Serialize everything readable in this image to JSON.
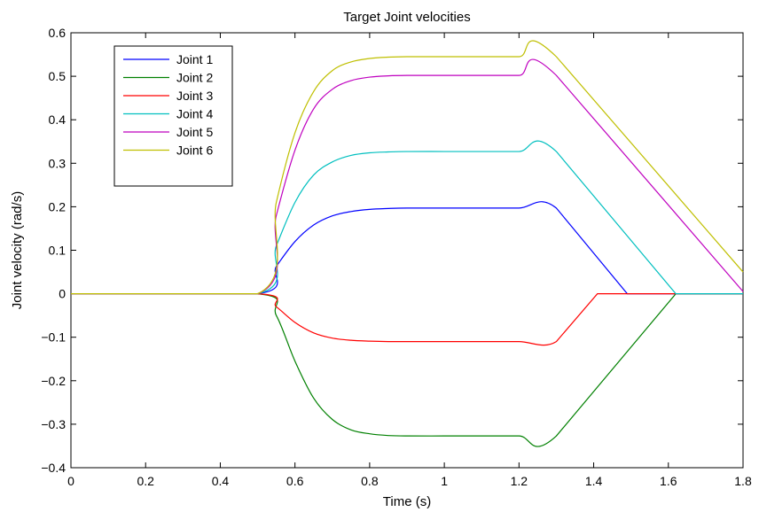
{
  "chart_data": {
    "type": "line",
    "title": "Target Joint velocities",
    "xlabel": "Time (s)",
    "ylabel": "Joint velocity (rad/s)",
    "xlim": [
      0,
      1.8
    ],
    "ylim": [
      -0.4,
      0.6
    ],
    "xticks": [
      0,
      0.2,
      0.4,
      0.6,
      0.8,
      1,
      1.2,
      1.4,
      1.6,
      1.8
    ],
    "xtick_labels": [
      "0",
      "0.2",
      "0.4",
      "0.6",
      "0.8",
      "1",
      "1.2",
      "1.4",
      "1.6",
      "1.8"
    ],
    "yticks": [
      -0.4,
      -0.3,
      -0.2,
      -0.1,
      0,
      0.1,
      0.2,
      0.3,
      0.4,
      0.5,
      0.6
    ],
    "ytick_labels": [
      "−0.4",
      "−0.3",
      "−0.2",
      "−0.1",
      "0",
      "0.1",
      "0.2",
      "0.3",
      "0.4",
      "0.5",
      "0.6"
    ],
    "grid": false,
    "legend_position": "top-left",
    "series": [
      {
        "name": "Joint 1",
        "color": "#0000ff",
        "x": [
          0,
          0.5,
          0.55,
          0.6,
          0.65,
          0.7,
          0.75,
          0.8,
          0.85,
          0.9,
          1.0,
          1.1,
          1.2,
          1.3,
          1.49,
          1.8
        ],
        "y": [
          0,
          0,
          0.063,
          0.12,
          0.158,
          0.179,
          0.189,
          0.194,
          0.196,
          0.197,
          0.197,
          0.197,
          0.197,
          0.197,
          0,
          0
        ]
      },
      {
        "name": "Joint 2",
        "color": "#008000",
        "x": [
          0,
          0.5,
          0.55,
          0.6,
          0.65,
          0.7,
          0.75,
          0.8,
          0.85,
          0.9,
          1.0,
          1.1,
          1.2,
          1.3,
          1.62,
          1.8
        ],
        "y": [
          0,
          0,
          -0.05,
          -0.155,
          -0.24,
          -0.289,
          -0.313,
          -0.322,
          -0.326,
          -0.327,
          -0.327,
          -0.327,
          -0.327,
          -0.327,
          0,
          0
        ]
      },
      {
        "name": "Joint 3",
        "color": "#ff0000",
        "x": [
          0,
          0.5,
          0.55,
          0.6,
          0.65,
          0.7,
          0.75,
          0.8,
          0.85,
          0.9,
          1.0,
          1.1,
          1.2,
          1.3,
          1.41,
          1.8
        ],
        "y": [
          0,
          0,
          -0.03,
          -0.066,
          -0.09,
          -0.102,
          -0.107,
          -0.109,
          -0.11,
          -0.11,
          -0.11,
          -0.11,
          -0.11,
          -0.11,
          0,
          0
        ]
      },
      {
        "name": "Joint 4",
        "color": "#00bfbf",
        "x": [
          0,
          0.5,
          0.55,
          0.6,
          0.65,
          0.7,
          0.75,
          0.8,
          0.85,
          0.9,
          1.0,
          1.1,
          1.2,
          1.3,
          1.62,
          1.8
        ],
        "y": [
          0,
          0,
          0.11,
          0.21,
          0.273,
          0.303,
          0.318,
          0.324,
          0.326,
          0.327,
          0.327,
          0.327,
          0.327,
          0.327,
          0,
          0
        ]
      },
      {
        "name": "Joint 5",
        "color": "#bf00bf",
        "x": [
          0,
          0.5,
          0.55,
          0.6,
          0.65,
          0.7,
          0.75,
          0.8,
          0.85,
          0.9,
          1.0,
          1.1,
          1.2,
          1.3,
          1.8
        ],
        "y": [
          0,
          0,
          0.18,
          0.33,
          0.425,
          0.47,
          0.49,
          0.498,
          0.501,
          0.502,
          0.502,
          0.502,
          0.502,
          0.502,
          0.005
        ]
      },
      {
        "name": "Joint 6",
        "color": "#bfbf00",
        "x": [
          0,
          0.5,
          0.55,
          0.6,
          0.65,
          0.7,
          0.75,
          0.8,
          0.85,
          0.9,
          1.0,
          1.1,
          1.2,
          1.3,
          1.8
        ],
        "y": [
          0,
          0,
          0.21,
          0.37,
          0.465,
          0.513,
          0.533,
          0.541,
          0.544,
          0.545,
          0.545,
          0.545,
          0.545,
          0.545,
          0.05
        ]
      }
    ]
  }
}
